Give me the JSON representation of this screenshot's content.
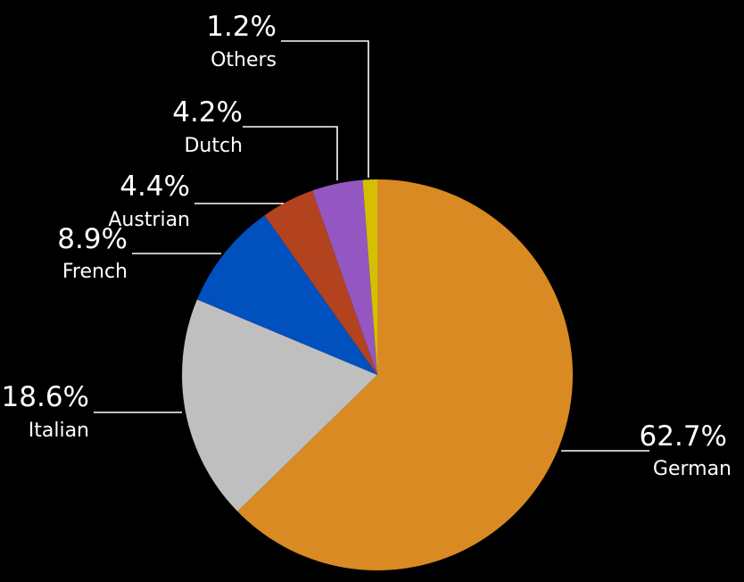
{
  "chart_data": {
    "type": "pie",
    "title": "",
    "start": "12 o'clock",
    "direction": "clockwise",
    "slices": [
      {
        "label": "German",
        "value": 62.7,
        "value_label": "62.7%",
        "color": "#D98A22"
      },
      {
        "label": "Italian",
        "value": 18.6,
        "value_label": "18.6%",
        "color": "#BFBFBF"
      },
      {
        "label": "French",
        "value": 8.9,
        "value_label": "8.9%",
        "color": "#0050BE"
      },
      {
        "label": "Austrian",
        "value": 4.4,
        "value_label": "4.4%",
        "color": "#B3421F"
      },
      {
        "label": "Dutch",
        "value": 4.2,
        "value_label": "4.2%",
        "color": "#9457C2"
      },
      {
        "label": "Others",
        "value": 1.2,
        "value_label": "1.2%",
        "color": "#D4C000"
      }
    ]
  }
}
